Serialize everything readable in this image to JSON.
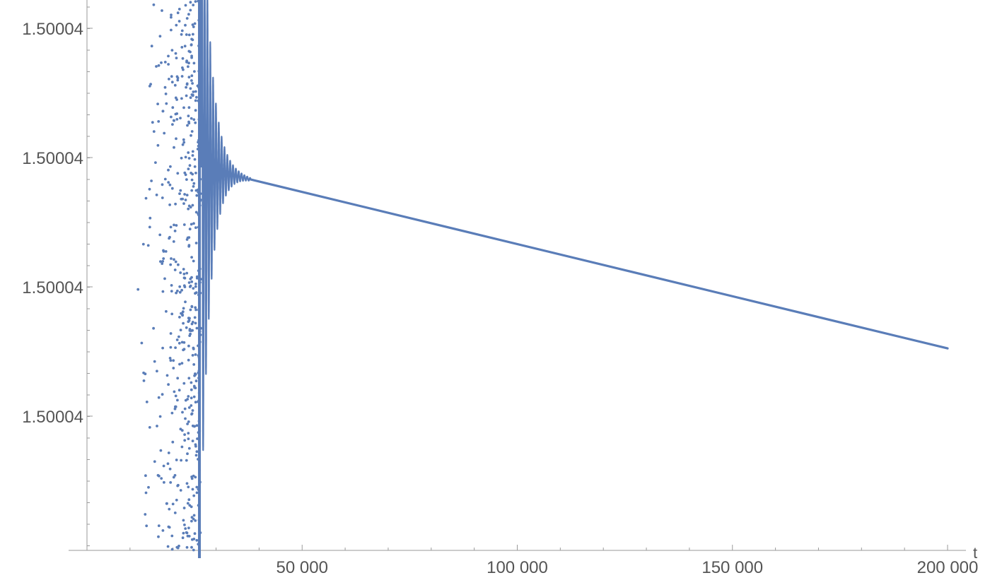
{
  "chart_data": {
    "type": "scatter",
    "title": "",
    "xlabel": "t",
    "ylabel": "",
    "x_ticks": [
      {
        "value": 50000,
        "label": "50 000"
      },
      {
        "value": 100000,
        "label": "100 000"
      },
      {
        "value": 150000,
        "label": "150 000"
      },
      {
        "value": 200000,
        "label": "200 000"
      }
    ],
    "y_tick_labels": [
      "1.50004",
      "1.50004",
      "1.50004",
      "1.50004"
    ],
    "xlim": [
      -4000,
      204000
    ],
    "ylim": [
      0,
      1
    ],
    "grid": false,
    "legend": "none",
    "marker_color": "#5a7db8",
    "axis_color": "#9a9a9a",
    "label_color": "#555555",
    "series": [
      {
        "description_of_shape": "",
        "trend": {
          "x_start": 38000,
          "y_start": 0.674,
          "x_end": 200000,
          "y_end": 0.367
        },
        "oscillation": {
          "x_start": 26500,
          "x_end": 38000,
          "max_amplitude": 0.65,
          "decay": 0.3
        },
        "scattered": {
          "x_min": 10000,
          "x_max": 26500
        }
      }
    ]
  }
}
